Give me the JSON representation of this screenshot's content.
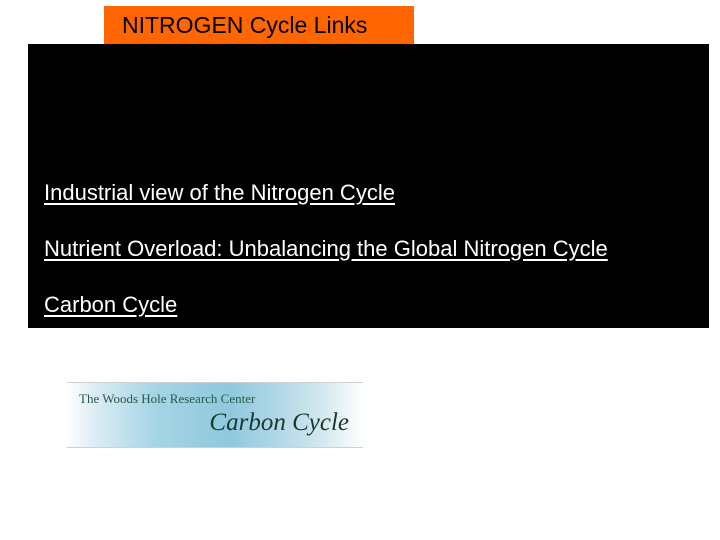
{
  "title": {
    "text": "NITROGEN Cycle Links",
    "background_color": "#ff6600",
    "text_color": "#000000",
    "fontsize": 23
  },
  "black_panel": {
    "background_color": "#000000"
  },
  "links": [
    {
      "label": "Industrial view of the Nitrogen Cycle"
    },
    {
      "label": "Nutrient Overload: Unbalancing the Global Nitrogen Cycle"
    },
    {
      "label": "Carbon Cycle"
    }
  ],
  "link_style": {
    "text_color": "#ffffff",
    "fontsize": 22,
    "underline": true
  },
  "logo": {
    "org_name": "The Woods Hole Research Center",
    "title": "Carbon Cycle",
    "org_fontsize": 13,
    "title_fontsize": 25,
    "org_color": "#275a47",
    "title_color": "#1b3a2e",
    "gradient_colors": [
      "#ffffff",
      "#d9ecf4",
      "#a6d4e5",
      "#8fc8dd",
      "#cfe6ee",
      "#ffffff"
    ]
  }
}
